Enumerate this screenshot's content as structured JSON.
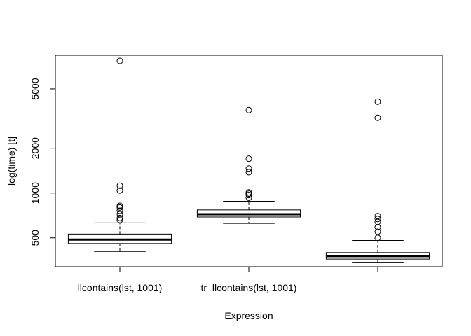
{
  "chart_data": {
    "type": "boxplot",
    "xlabel": "Expression",
    "ylabel": "log(time) [t]",
    "log_y": true,
    "ylim": [
      320,
      8400
    ],
    "yticks": [
      500,
      1000,
      2000,
      5000
    ],
    "categories": [
      "llcontains(lst, 1001)",
      "tr_llcontains(lst, 1001)",
      ""
    ],
    "boxes": [
      {
        "whisker_low": 405,
        "q1": 458,
        "median": 487,
        "q3": 530,
        "whisker_high": 630,
        "outliers": [
          660,
          680,
          720,
          760,
          800,
          820,
          1040,
          1120,
          7700
        ]
      },
      {
        "whisker_low": 625,
        "q1": 690,
        "median": 720,
        "q3": 770,
        "whisker_high": 880,
        "outliers": [
          930,
          970,
          990,
          1010,
          1380,
          1460,
          1700,
          3600
        ]
      },
      {
        "whisker_low": 340,
        "q1": 360,
        "median": 377,
        "q3": 398,
        "whisker_high": 480,
        "outliers": [
          500,
          550,
          590,
          640,
          670,
          700,
          3200,
          4100
        ]
      }
    ]
  }
}
